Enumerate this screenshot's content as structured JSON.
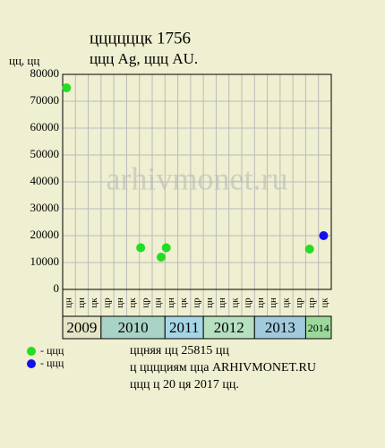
{
  "chart_data": {
    "type": "scatter",
    "title": "ццццццк 1756",
    "subtitle": "ццц Ag, ццц AU.",
    "y_label": "цц, цц",
    "watermark": "arhivmonet.ru",
    "ylim": [
      0,
      80000
    ],
    "yticks": [
      0,
      10000,
      20000,
      30000,
      40000,
      50000,
      60000,
      70000,
      80000
    ],
    "xlim": [
      0,
      21
    ],
    "grid": true,
    "columns": [
      "цн",
      "цн",
      "цк",
      "цр",
      "цн",
      "цк",
      "цр",
      "цн",
      "цн",
      "цк",
      "цр",
      "цн",
      "цн",
      "цк",
      "цр",
      "цн",
      "цн",
      "цк",
      "цр",
      "цр",
      "цк"
    ],
    "years": [
      {
        "label": "2009",
        "color": "#e4e4c6"
      },
      {
        "label": "2010",
        "color": "#a9d3c6"
      },
      {
        "label": "2011",
        "color": "#a6d6e6"
      },
      {
        "label": "2012",
        "color": "#b6e0c0"
      },
      {
        "label": "2013",
        "color": "#a2cadc"
      },
      {
        "label": "2014",
        "color": "#9bd99b"
      }
    ],
    "series": [
      {
        "name": "- ццц",
        "color": "#22dd22",
        "x": [
          0.3,
          6.1,
          7.7,
          8.1,
          19.3
        ],
        "values": [
          75000,
          15500,
          12000,
          15500,
          15000
        ]
      },
      {
        "name": "- ццц",
        "color": "#1111ee",
        "x": [
          20.4
        ],
        "values": [
          20000
        ]
      }
    ],
    "notes": [
      "ццняя цц 25815 цц",
      "ц цццциям цца ARHIVMONET.RU",
      "ццц ц 20 ця 2017 цц."
    ]
  }
}
